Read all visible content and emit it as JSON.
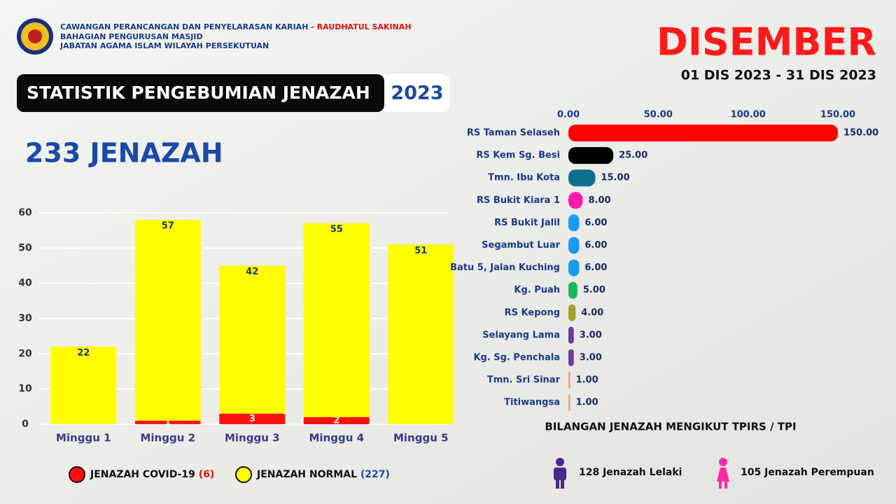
{
  "header": {
    "org_line_1": "CAWANGAN PERANCANGAN DAN PENYELARASAN KARIAH - ",
    "org_line_1_highlight": "RAUDHATUL SAKINAH",
    "org_line_2": "BAHAGIAN PENGURUSAN MASJID",
    "org_line_3": "JABATAN AGAMA ISLAM WILAYAH PERSEKUTUAN",
    "title": "STATISTIK PENGEBUMIAN JENAZAH",
    "year": "2023",
    "total": "233 JENAZAH",
    "month": "DISEMBER",
    "date_range": "01 DIS 2023 - 31 DIS 2023"
  },
  "chart_data": [
    {
      "type": "stacked_bar",
      "categories": [
        "Minggu 1",
        "Minggu 2",
        "Minggu 3",
        "Minggu 4",
        "Minggu 5"
      ],
      "series": [
        {
          "name": "JENAZAH COVID-19",
          "count_label": "(6)",
          "color": "#ff1010",
          "values": [
            0,
            1,
            3,
            2,
            0
          ]
        },
        {
          "name": "JENAZAH NORMAL",
          "count_label": "(227)",
          "color": "#ffff00",
          "values": [
            22,
            57,
            42,
            55,
            51
          ]
        }
      ],
      "ylim": [
        0,
        60
      ],
      "yticks": [
        0,
        10,
        20,
        30,
        40,
        50,
        60
      ],
      "grid": true
    },
    {
      "type": "hbar",
      "x_label": "BILANGAN JENAZAH MENGIKUT TPIRS / TPI",
      "categories": [
        "RS Taman Selaseh",
        "RS Kem Sg. Besi",
        "Tmn. Ibu Kota",
        "RS Bukit Kiara 1",
        "RS Bukit Jalil",
        "Segambut Luar",
        "Batu 5, Jalan Kuching",
        "Kg. Puah",
        "RS Kepong",
        "Selayang Lama",
        "Kg. Sg. Penchala",
        "Tmn. Sri Sinar",
        "Titiwangsa"
      ],
      "values": [
        150,
        25,
        15,
        8,
        6,
        6,
        6,
        5,
        4,
        3,
        3,
        1,
        1
      ],
      "value_labels": [
        "150.00",
        "25.00",
        "15.00",
        "8.00",
        "6.00",
        "6.00",
        "6.00",
        "5.00",
        "4.00",
        "3.00",
        "3.00",
        "1.00",
        "1.00"
      ],
      "colors": [
        "#ff0000",
        "#000000",
        "#0e6e8e",
        "#ff1aa8",
        "#1a9af0",
        "#1a9af0",
        "#1a9af0",
        "#18b860",
        "#a0a030",
        "#6a3aa0",
        "#6a3aa0",
        "#f0a080",
        "#f0a080"
      ],
      "xlim": [
        0,
        150
      ],
      "xticks": [
        {
          "value": 0,
          "label": "0.00"
        },
        {
          "value": 50,
          "label": "50.00"
        },
        {
          "value": 100,
          "label": "100.00"
        },
        {
          "value": 150,
          "label": "150.00"
        }
      ]
    }
  ],
  "footer": {
    "male": "128 Jenazah Lelaki",
    "female": "105 Jenazah Perempuan"
  }
}
